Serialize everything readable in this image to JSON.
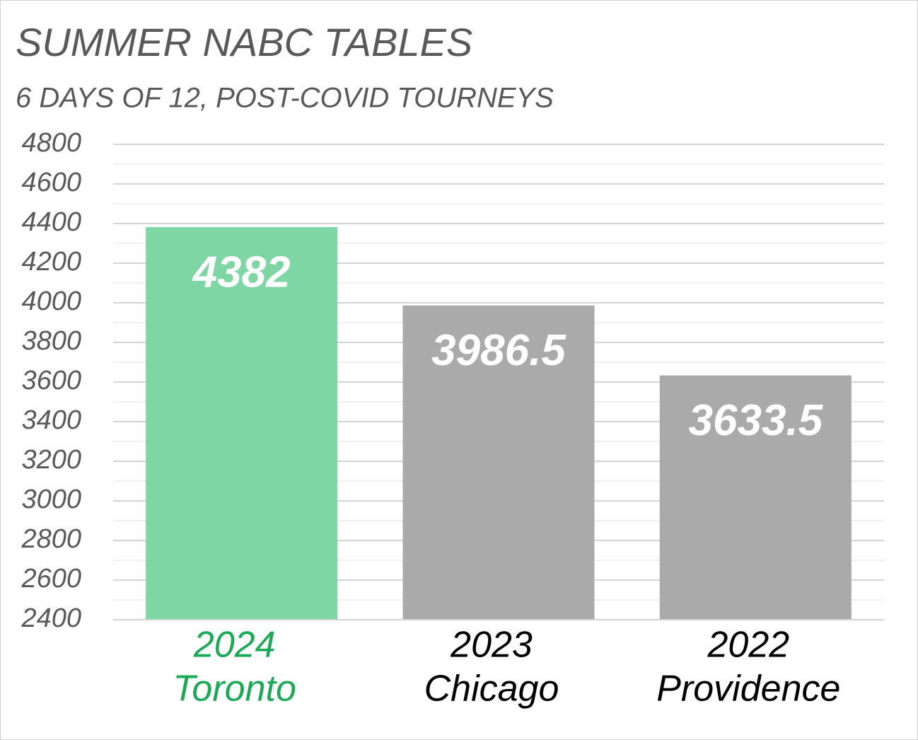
{
  "chart_data": {
    "type": "bar",
    "title": "SUMMER NABC TABLES",
    "subtitle": "6 DAYS OF 12, POST-COVID TOURNEYS",
    "categories": [
      [
        "2024",
        "Toronto"
      ],
      [
        "2023",
        "Chicago"
      ],
      [
        "2022",
        "Providence"
      ]
    ],
    "category_colors": [
      "#1aaa55",
      "#000000",
      "#000000"
    ],
    "values": [
      4382,
      3986.5,
      3633.5
    ],
    "colors": [
      "#7dd6a4",
      "#aaaaaa",
      "#aaaaaa"
    ],
    "ylim": [
      2400,
      4800
    ],
    "yticks": [
      2400,
      2600,
      2800,
      3000,
      3200,
      3400,
      3600,
      3800,
      4000,
      4200,
      4400,
      4600,
      4800
    ],
    "grid": true,
    "minor_grid": true
  }
}
